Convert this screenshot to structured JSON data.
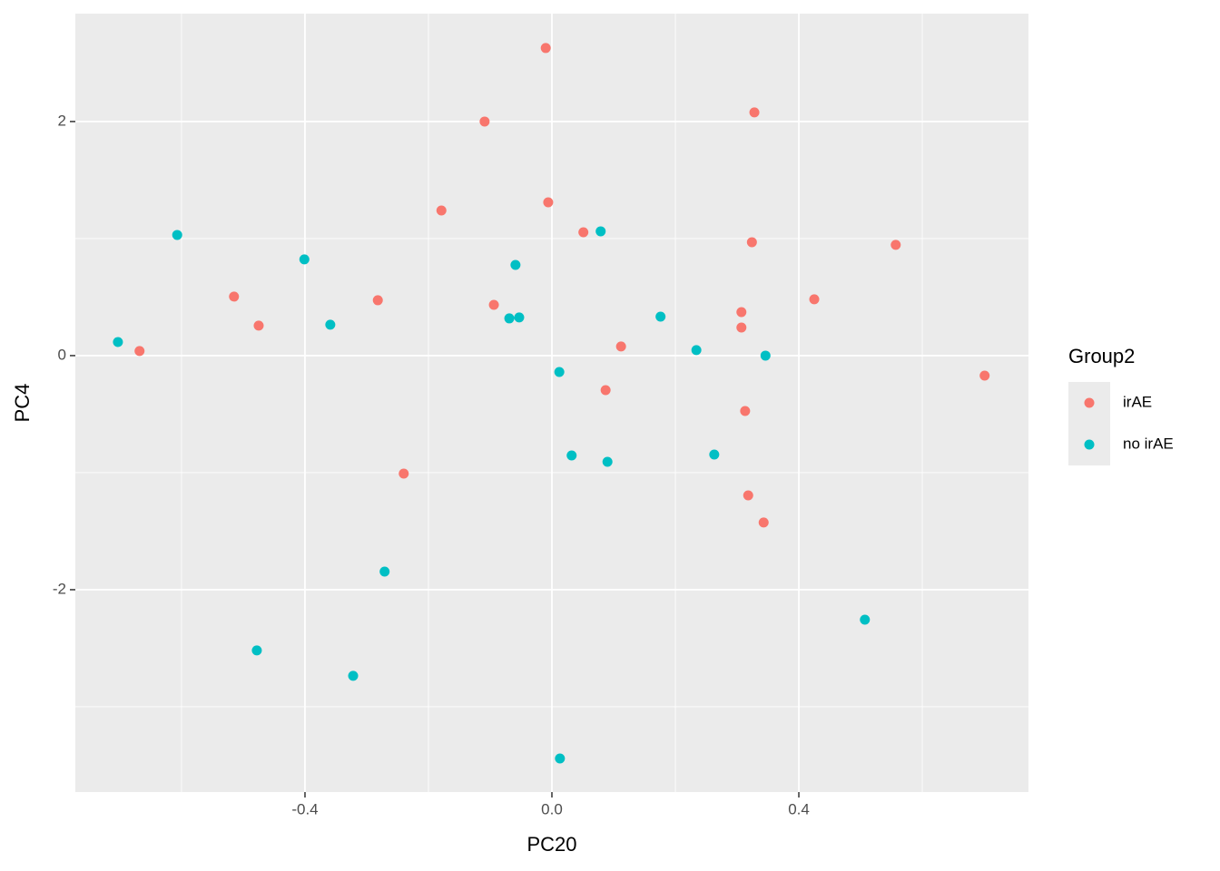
{
  "chart_data": {
    "type": "scatter",
    "xlabel": "PC20",
    "ylabel": "PC4",
    "legend_title": "Group2",
    "legend_position": "right",
    "xlim": [
      -0.772,
      0.772
    ],
    "ylim": [
      -3.729,
      2.922
    ],
    "xticks": [
      -0.4,
      {
        "value": 0,
        "label": "0.0"
      },
      0.4
    ],
    "yticks": [
      -2,
      0,
      2
    ],
    "xminor": [
      -0.6,
      -0.2,
      0.2,
      0.6
    ],
    "yminor": [
      -3,
      -1,
      1
    ],
    "grid": true,
    "series": [
      {
        "name": "irAE",
        "color": "#F8766D",
        "x": [
          -0.01,
          -0.109,
          0.328,
          -0.179,
          -0.006,
          0.051,
          0.324,
          0.557,
          -0.515,
          -0.475,
          -0.282,
          -0.094,
          0.425,
          0.307,
          0.307,
          -0.668,
          0.112,
          0.701,
          0.087,
          0.313,
          -0.24,
          0.318,
          0.343
        ],
        "values": [
          2.628,
          2.0,
          2.078,
          1.24,
          1.31,
          1.054,
          0.969,
          0.946,
          0.504,
          0.256,
          0.473,
          0.434,
          0.481,
          0.372,
          0.24,
          0.039,
          0.078,
          -0.171,
          -0.295,
          -0.473,
          -1.008,
          -1.194,
          -1.426
        ]
      },
      {
        "name": "no irAE",
        "color": "#00BFC4",
        "x": [
          -0.607,
          -0.401,
          0.079,
          -0.059,
          -0.359,
          -0.069,
          -0.053,
          0.176,
          -0.703,
          0.234,
          0.346,
          0.012,
          0.032,
          0.09,
          0.263,
          -0.271,
          -0.478,
          -0.322,
          0.507,
          0.013
        ],
        "values": [
          1.031,
          0.822,
          1.062,
          0.775,
          0.264,
          0.318,
          0.326,
          0.333,
          0.116,
          0.047,
          0.0,
          -0.14,
          -0.853,
          -0.907,
          -0.845,
          -1.845,
          -2.519,
          -2.736,
          -2.256,
          -3.442
        ]
      }
    ]
  }
}
